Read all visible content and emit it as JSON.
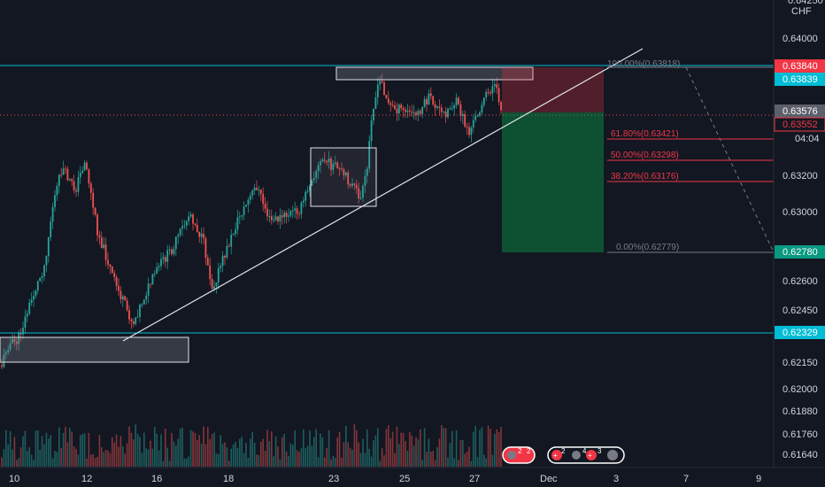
{
  "chart_data": {
    "type": "candlestick",
    "instrument_currency": "CHF",
    "x_tick_labels": [
      "10",
      "12",
      "16",
      "18",
      "23",
      "25",
      "27",
      "Dec",
      "3",
      "7",
      "9"
    ],
    "y_tick_labels": [
      "0.64000",
      "0.63200",
      "0.63000",
      "0.62600",
      "0.62450",
      "0.62150",
      "0.62000",
      "0.61880",
      "0.61760",
      "0.61640"
    ],
    "ylim": [
      0.616,
      0.6445
    ],
    "price_levels": {
      "resistance": 0.6384,
      "upper": 0.63839,
      "current": 0.63576,
      "entry": 0.63552,
      "target": 0.6278,
      "support": 0.62329
    },
    "countdown": "04:04",
    "price_tags": [
      {
        "label": "0.63840",
        "color": "#f23645"
      },
      {
        "label": "0.63839",
        "color": "#00bcd4"
      },
      {
        "label": "0.63576",
        "color": "#5d606b"
      },
      {
        "label": "0.63552",
        "color": "#f23645"
      },
      {
        "label": "0.62780",
        "color": "#089981"
      },
      {
        "label": "0.62329",
        "color": "#00bcd4"
      }
    ],
    "fibonacci": [
      {
        "label": "100.00%(0.63818)",
        "color": "#787b86"
      },
      {
        "label": "61.80%(0.63421)",
        "color": "#f23645"
      },
      {
        "label": "50.00%(0.63298)",
        "color": "#f23645"
      },
      {
        "label": "38.20%(0.63176)",
        "color": "#f23645"
      },
      {
        "label": "0.00%(0.62779)",
        "color": "#787b86"
      }
    ],
    "event_badges": [
      "2",
      "2",
      "2",
      "4",
      "3"
    ],
    "colors": {
      "up": "#26a69a",
      "down": "#ef5350",
      "level": "#00bcd4",
      "background": "#131722"
    }
  }
}
